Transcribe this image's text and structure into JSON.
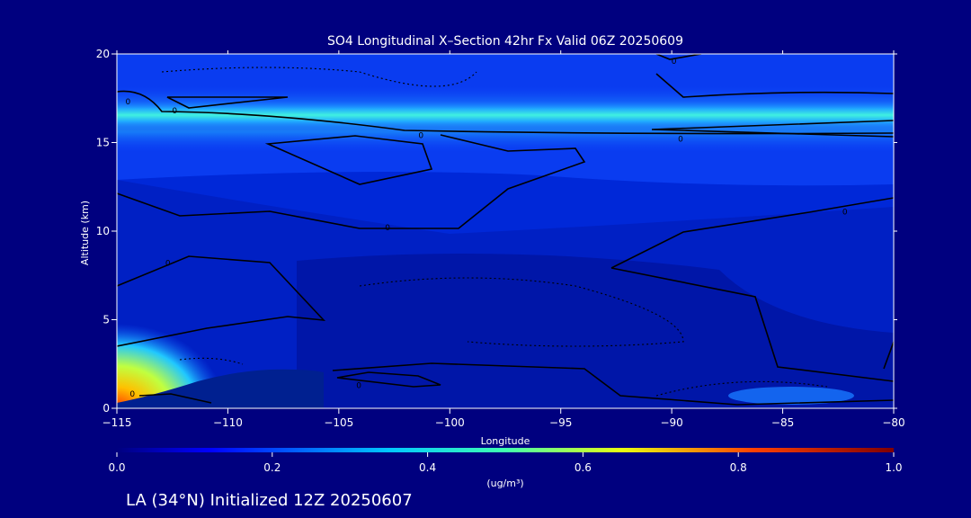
{
  "chart_data": {
    "type": "heatmap",
    "title": "SO4 Longitudinal X–Section 42hr  Fx Valid 06Z 20250609",
    "xlabel": "Longitude",
    "ylabel": "Altitude (km)",
    "xlim": [
      -115,
      -80
    ],
    "ylim": [
      0,
      20
    ],
    "x_ticks": [
      -115,
      -110,
      -105,
      -100,
      -95,
      -90,
      -85,
      -80
    ],
    "x_tick_labels": [
      "−115",
      "−110",
      "−105",
      "−100",
      "−95",
      "−90",
      "−85",
      "−80"
    ],
    "y_ticks": [
      0,
      5,
      10,
      15,
      20
    ],
    "y_tick_labels": [
      "0",
      "5",
      "10",
      "15",
      "20"
    ],
    "colorbar": {
      "label": "(ug/m³)",
      "range": [
        0.0,
        1.0
      ],
      "ticks": [
        0.0,
        0.2,
        0.4,
        0.6,
        0.8,
        1.0
      ],
      "tick_labels": [
        "0.0",
        "0.2",
        "0.4",
        "0.6",
        "0.8",
        "1.0"
      ]
    },
    "contour_label": "0",
    "field_features": [
      {
        "lon_range": [
          -115,
          -80
        ],
        "alt_range": [
          15.5,
          17.5
        ],
        "peak_value": 0.4
      },
      {
        "lon_range": [
          -115,
          -112
        ],
        "alt_range": [
          0,
          3
        ],
        "peak_value": 0.8
      },
      {
        "lon_range": [
          -86,
          -82
        ],
        "alt_range": [
          0.3,
          1.2
        ],
        "peak_value": 0.15
      }
    ]
  },
  "caption": "LA (34°N) Initialized 12Z 20250607"
}
